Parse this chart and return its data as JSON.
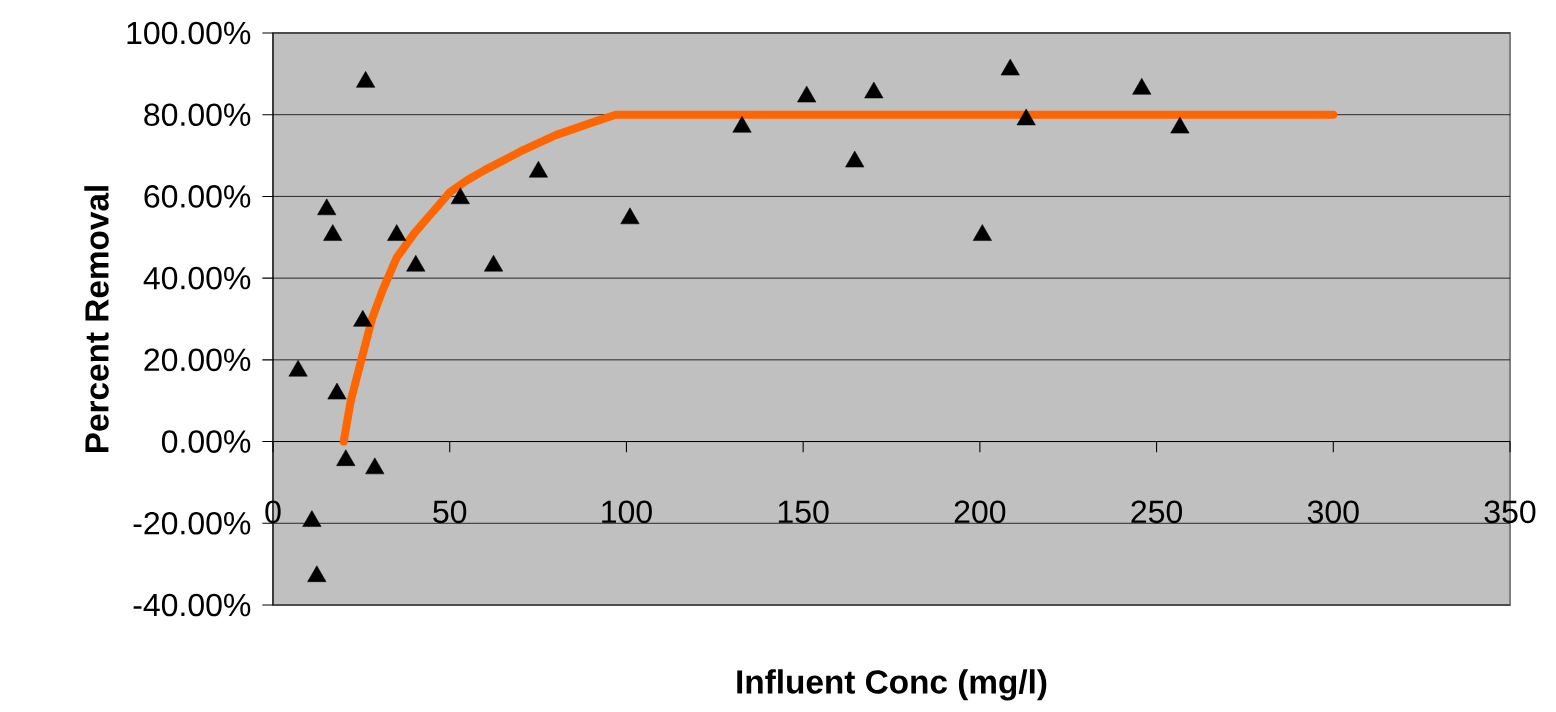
{
  "chart_data": {
    "type": "scatter",
    "xlabel": "Influent Conc (mg/l)",
    "ylabel": "Percent Removal",
    "xlim": [
      0,
      350
    ],
    "ylim": [
      -40,
      100
    ],
    "xticks": [
      0,
      50,
      100,
      150,
      200,
      250,
      300,
      350
    ],
    "yticks": [
      {
        "value": -40,
        "label": "-40.00%"
      },
      {
        "value": -20,
        "label": "-20.00%"
      },
      {
        "value": 0,
        "label": "0.00%"
      },
      {
        "value": 20,
        "label": "20.00%"
      },
      {
        "value": 40,
        "label": "40.00%"
      },
      {
        "value": 60,
        "label": "60.00%"
      },
      {
        "value": 80,
        "label": "80.00%"
      },
      {
        "value": 100,
        "label": "100.00%"
      }
    ],
    "grid": "y",
    "marker": "triangle",
    "series": [
      {
        "color": "#000000",
        "x": [
          7.1,
          11,
          12.4,
          15.2,
          16.9,
          18.1,
          20.6,
          25.4,
          26.2,
          28.8,
          35,
          40.4,
          53,
          62.4,
          75.1,
          101,
          132.7,
          151,
          164.6,
          170,
          200.7,
          208.6,
          213.1,
          245.8,
          256.6
        ],
        "values": [
          17.3,
          -19.5,
          -33,
          56.8,
          50.5,
          11.7,
          -4.6,
          29.5,
          88,
          -6.6,
          50.5,
          43,
          59.5,
          43,
          66,
          54.6,
          77,
          84.4,
          68.5,
          85.4,
          50.5,
          91,
          78.8,
          86.3,
          76.8
        ]
      },
      {
        "type": "line",
        "color": "#ff6600",
        "marker": "none",
        "x": [
          20,
          22,
          25,
          28,
          31,
          35,
          40,
          45,
          50,
          55,
          60,
          70,
          80,
          90,
          97,
          300
        ],
        "values": [
          0,
          10,
          20,
          30,
          37,
          45,
          51,
          56,
          61,
          64,
          66.5,
          71,
          75,
          78,
          80,
          80
        ]
      }
    ]
  }
}
